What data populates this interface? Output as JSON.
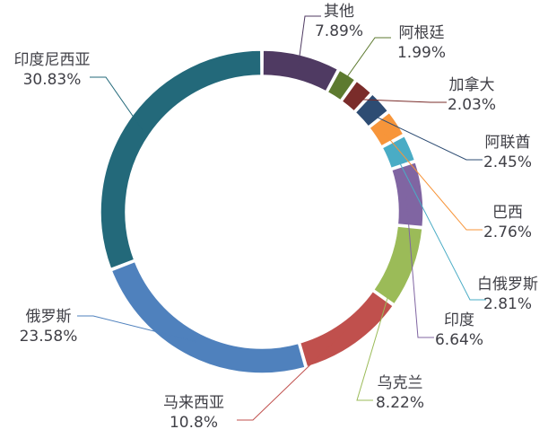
{
  "chart_data": {
    "type": "pie",
    "variant": "donut",
    "title": "",
    "legend": "none",
    "slices": [
      {
        "label": "其他",
        "value": 7.89,
        "value_label": "7.89%",
        "color": "#4f3a62"
      },
      {
        "label": "阿根廷",
        "value": 1.99,
        "value_label": "1.99%",
        "color": "#5d7a2f"
      },
      {
        "label": "加拿大",
        "value": 2.03,
        "value_label": "2.03%",
        "color": "#7a2c2a"
      },
      {
        "label": "阿联酋",
        "value": 2.45,
        "value_label": "2.45%",
        "color": "#2d4c73"
      },
      {
        "label": "巴西",
        "value": 2.76,
        "value_label": "2.76%",
        "color": "#f7953a"
      },
      {
        "label": "白俄罗斯",
        "value": 2.81,
        "value_label": "2.81%",
        "color": "#4aacc5"
      },
      {
        "label": "印度",
        "value": 6.64,
        "value_label": "6.64%",
        "color": "#8065a2"
      },
      {
        "label": "乌克兰",
        "value": 8.22,
        "value_label": "8.22%",
        "color": "#9bbb58"
      },
      {
        "label": "马来西亚",
        "value": 10.8,
        "value_label": "10.8%",
        "color": "#c0504d"
      },
      {
        "label": "俄罗斯",
        "value": 23.58,
        "value_label": "23.58%",
        "color": "#4f81bd"
      },
      {
        "label": "印度尼西亚",
        "value": 30.83,
        "value_label": "30.83%",
        "color": "#23697a"
      }
    ]
  }
}
